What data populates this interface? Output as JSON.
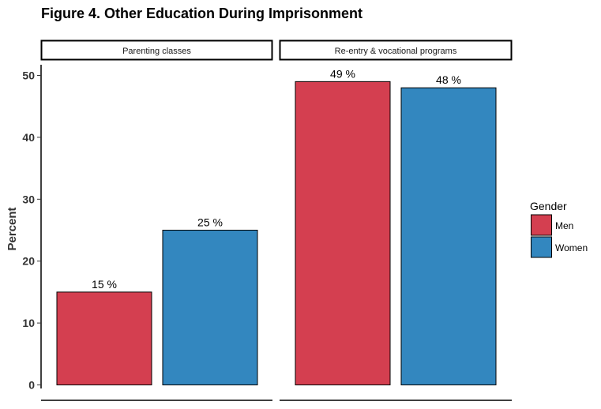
{
  "chart_data": {
    "type": "bar",
    "title": "Figure 4. Other Education During Imprisonment",
    "ylabel": "Percent",
    "xlabel": "",
    "ylim": [
      0,
      52
    ],
    "yticks": [
      0,
      10,
      20,
      30,
      40,
      50
    ],
    "grid": false,
    "facets": [
      "Parenting classes",
      "Re-entry & vocational programs"
    ],
    "series": [
      {
        "name": "Men",
        "values": [
          15,
          49
        ],
        "labels": [
          "15 %",
          "49 %"
        ]
      },
      {
        "name": "Women",
        "values": [
          25,
          48
        ],
        "labels": [
          "25 %",
          "48 %"
        ]
      }
    ],
    "legend": {
      "title": "Gender",
      "position": "right"
    },
    "colors": {
      "Men": "#d43f50",
      "Women": "#3387bf"
    }
  }
}
